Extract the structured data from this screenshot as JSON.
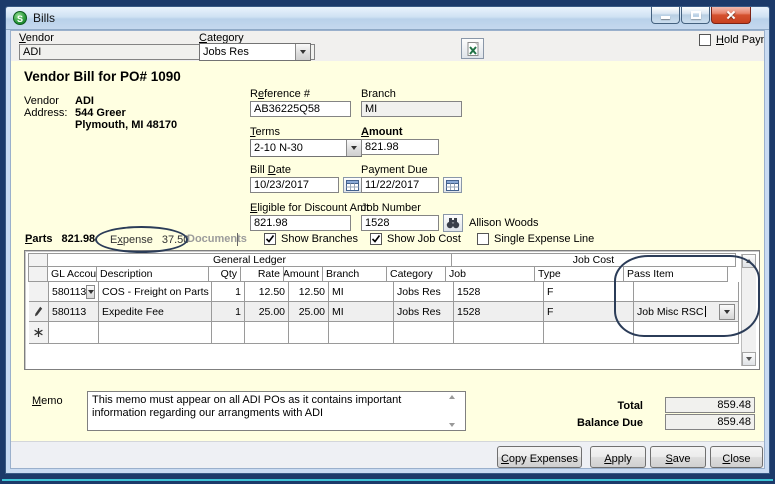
{
  "window": {
    "title": "Bills",
    "icon_letter": "S"
  },
  "header": {
    "vendor_label": {
      "text": "Vendor",
      "u": 0
    },
    "vendor_value": "ADI",
    "category_label": {
      "text": "Category",
      "u": 0
    },
    "category_value": "Jobs Res",
    "hold_payment_label": {
      "text": "Hold Payment",
      "u": 0
    }
  },
  "bill": {
    "heading": "Vendor Bill for PO# 1090",
    "vendor_caption": "Vendor",
    "address_caption": "Address:",
    "vendor_name": "ADI",
    "address_line1": "544 Greer",
    "address_line2": "Plymouth, MI  48170",
    "reference": {
      "label": {
        "text": "Reference #",
        "u": 1
      },
      "value": "AB36225Q58"
    },
    "branch": {
      "label": "Branch",
      "value": "MI"
    },
    "terms": {
      "label": {
        "text": "Terms",
        "u": 0
      },
      "value": "2-10 N-30"
    },
    "amount": {
      "label": {
        "text": "Amount",
        "u": 0
      },
      "value": "821.98"
    },
    "bill_date": {
      "label": {
        "text": "Bill Date",
        "u": 5
      },
      "value": "10/23/2017"
    },
    "payment_due": {
      "label": "Payment Due",
      "value": "11/22/2017"
    },
    "eligible_discount": {
      "label": {
        "text": "Eligible for Discount Amt",
        "u": 0
      },
      "value": "821.98"
    },
    "job_number": {
      "label": "Job Number",
      "value": "1528",
      "assignee": "Allison Woods"
    }
  },
  "tabs": {
    "parts": {
      "label": {
        "text": "Parts",
        "u": 0
      },
      "amount": "821.98"
    },
    "expense": {
      "label": {
        "text": "Expense",
        "u": 1
      },
      "amount": "37.50"
    },
    "documents": {
      "label": "Documents"
    }
  },
  "options": {
    "show_branches": "Show Branches",
    "show_job_cost": "Show Job Cost",
    "single_expense_line": "Single Expense Line"
  },
  "grid": {
    "group_general": "General Ledger",
    "group_job": "Job Cost",
    "columns": [
      "GL Account",
      "Description",
      "Qty",
      "Rate",
      "Amount",
      "Branch",
      "Category",
      "Job",
      "Type",
      "Pass Item"
    ],
    "rows": [
      {
        "gl": "580113",
        "desc": "COS - Freight on Parts",
        "qty": "1",
        "rate": "12.50",
        "amount": "12.50",
        "branch": "MI",
        "category": "Jobs Res",
        "job": "1528",
        "type": "F",
        "pass": ""
      },
      {
        "gl": "580113",
        "desc": "Expedite Fee",
        "qty": "1",
        "rate": "25.00",
        "amount": "25.00",
        "branch": "MI",
        "category": "Jobs Res",
        "job": "1528",
        "type": "F",
        "pass": "Job Misc RSC"
      }
    ]
  },
  "memo": {
    "label": {
      "text": "Memo",
      "u": 0
    },
    "text": "This memo must appear on all ADI POs as it contains important information regarding our arrangments with ADI"
  },
  "totals": {
    "total_label": "Total",
    "total_value": "859.48",
    "balance_label": "Balance Due",
    "balance_value": "859.48"
  },
  "buttons": {
    "copy_expenses": {
      "text": "Copy Expenses",
      "u": 0
    },
    "apply": {
      "text": "Apply",
      "u": 0
    },
    "save": {
      "text": "Save",
      "u": 0
    },
    "close": {
      "text": "Close",
      "u": 0
    }
  }
}
